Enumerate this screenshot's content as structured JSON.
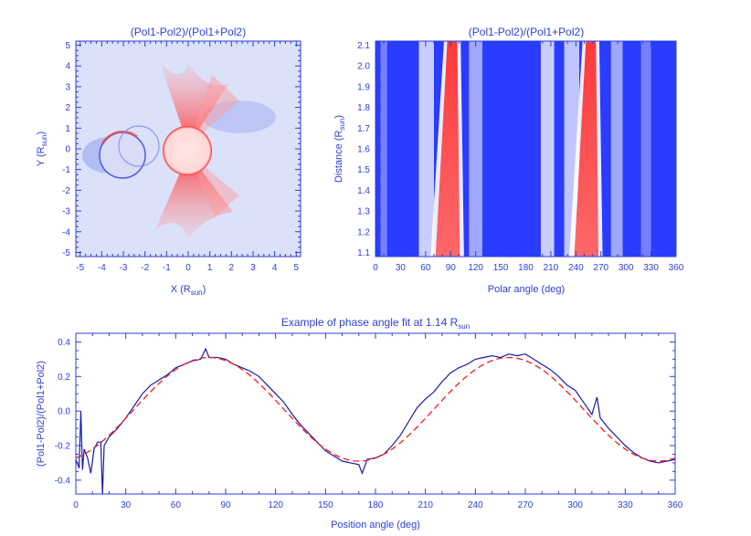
{
  "chart_data": [
    {
      "type": "heatmap",
      "title": "(Pol1-Pol2)/(Pol1+Pol2)",
      "xlabel": "X (R",
      "xlabel_sub": "sun",
      "xlabel_end": ")",
      "ylabel": "Y (R",
      "ylabel_sub": "sun",
      "ylabel_end": ")",
      "xlim": [
        -5.2,
        5.2
      ],
      "ylim": [
        -5.2,
        5.2
      ],
      "xticks": [
        -5,
        -4,
        -3,
        -2,
        -1,
        0,
        1,
        2,
        3,
        4,
        5
      ],
      "yticks": [
        -5,
        -4,
        -3,
        -2,
        -1,
        0,
        1,
        2,
        3,
        4,
        5
      ],
      "colors": {
        "positive": "#ff2a2a",
        "negative": "#1a2bff",
        "zero": "#ffffff"
      }
    },
    {
      "type": "heatmap",
      "title": "(Pol1-Pol2)/(Pol1+Pol2)",
      "xlabel": "Polar angle (deg)",
      "ylabel": "Distance (R",
      "ylabel_sub": "sun",
      "ylabel_end": ")",
      "xlim": [
        0,
        360
      ],
      "ylim": [
        1.08,
        2.12
      ],
      "xticks": [
        0,
        30,
        60,
        90,
        120,
        150,
        180,
        210,
        240,
        270,
        300,
        330,
        360
      ],
      "yticks": [
        1.1,
        1.2,
        1.3,
        1.4,
        1.5,
        1.6,
        1.7,
        1.8,
        1.9,
        2.0,
        2.1
      ],
      "ytick_labels": [
        "1.1",
        "1.2",
        "1.3",
        "1.4",
        "1.5",
        "1.6",
        "1.7",
        "1.8",
        "1.9",
        "2.0",
        "2.1"
      ],
      "red_bands_center_deg": [
        92,
        258
      ],
      "colors": {
        "positive": "#ff2a2a",
        "negative": "#1a2bff",
        "zero": "#ffffff"
      }
    },
    {
      "type": "line",
      "title": "Example of phase angle fit at 1.14 R",
      "title_sub": "sun",
      "xlabel": "Position angle (deg)",
      "ylabel": "(Pol1-Pol2)/(Pol1+Pol2)",
      "xlim": [
        0,
        360
      ],
      "ylim": [
        -0.48,
        0.45
      ],
      "xticks": [
        0,
        30,
        60,
        90,
        120,
        150,
        180,
        210,
        240,
        270,
        300,
        330,
        360
      ],
      "yticks": [
        -0.4,
        -0.2,
        0.0,
        0.2,
        0.4
      ],
      "ytick_labels": [
        "-0.4",
        "-0.2",
        "0.0",
        "0.2",
        "0.4"
      ],
      "series": [
        {
          "style": "solid",
          "color": "#1a1aa8",
          "x": [
            0,
            2,
            3,
            4,
            5,
            7,
            9,
            11,
            13,
            15,
            16,
            17,
            20,
            25,
            30,
            35,
            40,
            45,
            50,
            55,
            60,
            65,
            70,
            75,
            78,
            80,
            85,
            90,
            95,
            100,
            105,
            110,
            115,
            120,
            125,
            130,
            135,
            140,
            145,
            150,
            155,
            160,
            165,
            170,
            172,
            175,
            180,
            185,
            190,
            195,
            200,
            205,
            210,
            215,
            220,
            225,
            230,
            235,
            240,
            245,
            250,
            255,
            260,
            265,
            270,
            275,
            280,
            285,
            290,
            295,
            300,
            305,
            310,
            313,
            315,
            320,
            325,
            330,
            335,
            340,
            345,
            350,
            355,
            360
          ],
          "y": [
            -0.28,
            -0.33,
            0.0,
            -0.34,
            -0.22,
            -0.27,
            -0.36,
            -0.22,
            -0.18,
            -0.18,
            -0.48,
            -0.2,
            -0.15,
            -0.1,
            -0.04,
            0.03,
            0.1,
            0.15,
            0.18,
            0.21,
            0.25,
            0.27,
            0.29,
            0.3,
            0.36,
            0.31,
            0.31,
            0.3,
            0.27,
            0.25,
            0.23,
            0.2,
            0.15,
            0.1,
            0.05,
            -0.02,
            -0.08,
            -0.13,
            -0.18,
            -0.23,
            -0.26,
            -0.29,
            -0.3,
            -0.31,
            -0.36,
            -0.28,
            -0.27,
            -0.25,
            -0.2,
            -0.14,
            -0.06,
            0.02,
            0.07,
            0.11,
            0.17,
            0.22,
            0.25,
            0.27,
            0.3,
            0.31,
            0.32,
            0.31,
            0.33,
            0.32,
            0.33,
            0.3,
            0.27,
            0.24,
            0.2,
            0.15,
            0.12,
            0.05,
            -0.02,
            0.08,
            -0.04,
            -0.1,
            -0.15,
            -0.2,
            -0.24,
            -0.27,
            -0.29,
            -0.3,
            -0.29,
            -0.28
          ]
        },
        {
          "style": "dashed",
          "color": "#ff1a1a",
          "model": {
            "offset": 0.01,
            "amplitude": 0.3,
            "phase_deg": 80
          }
        }
      ]
    }
  ]
}
